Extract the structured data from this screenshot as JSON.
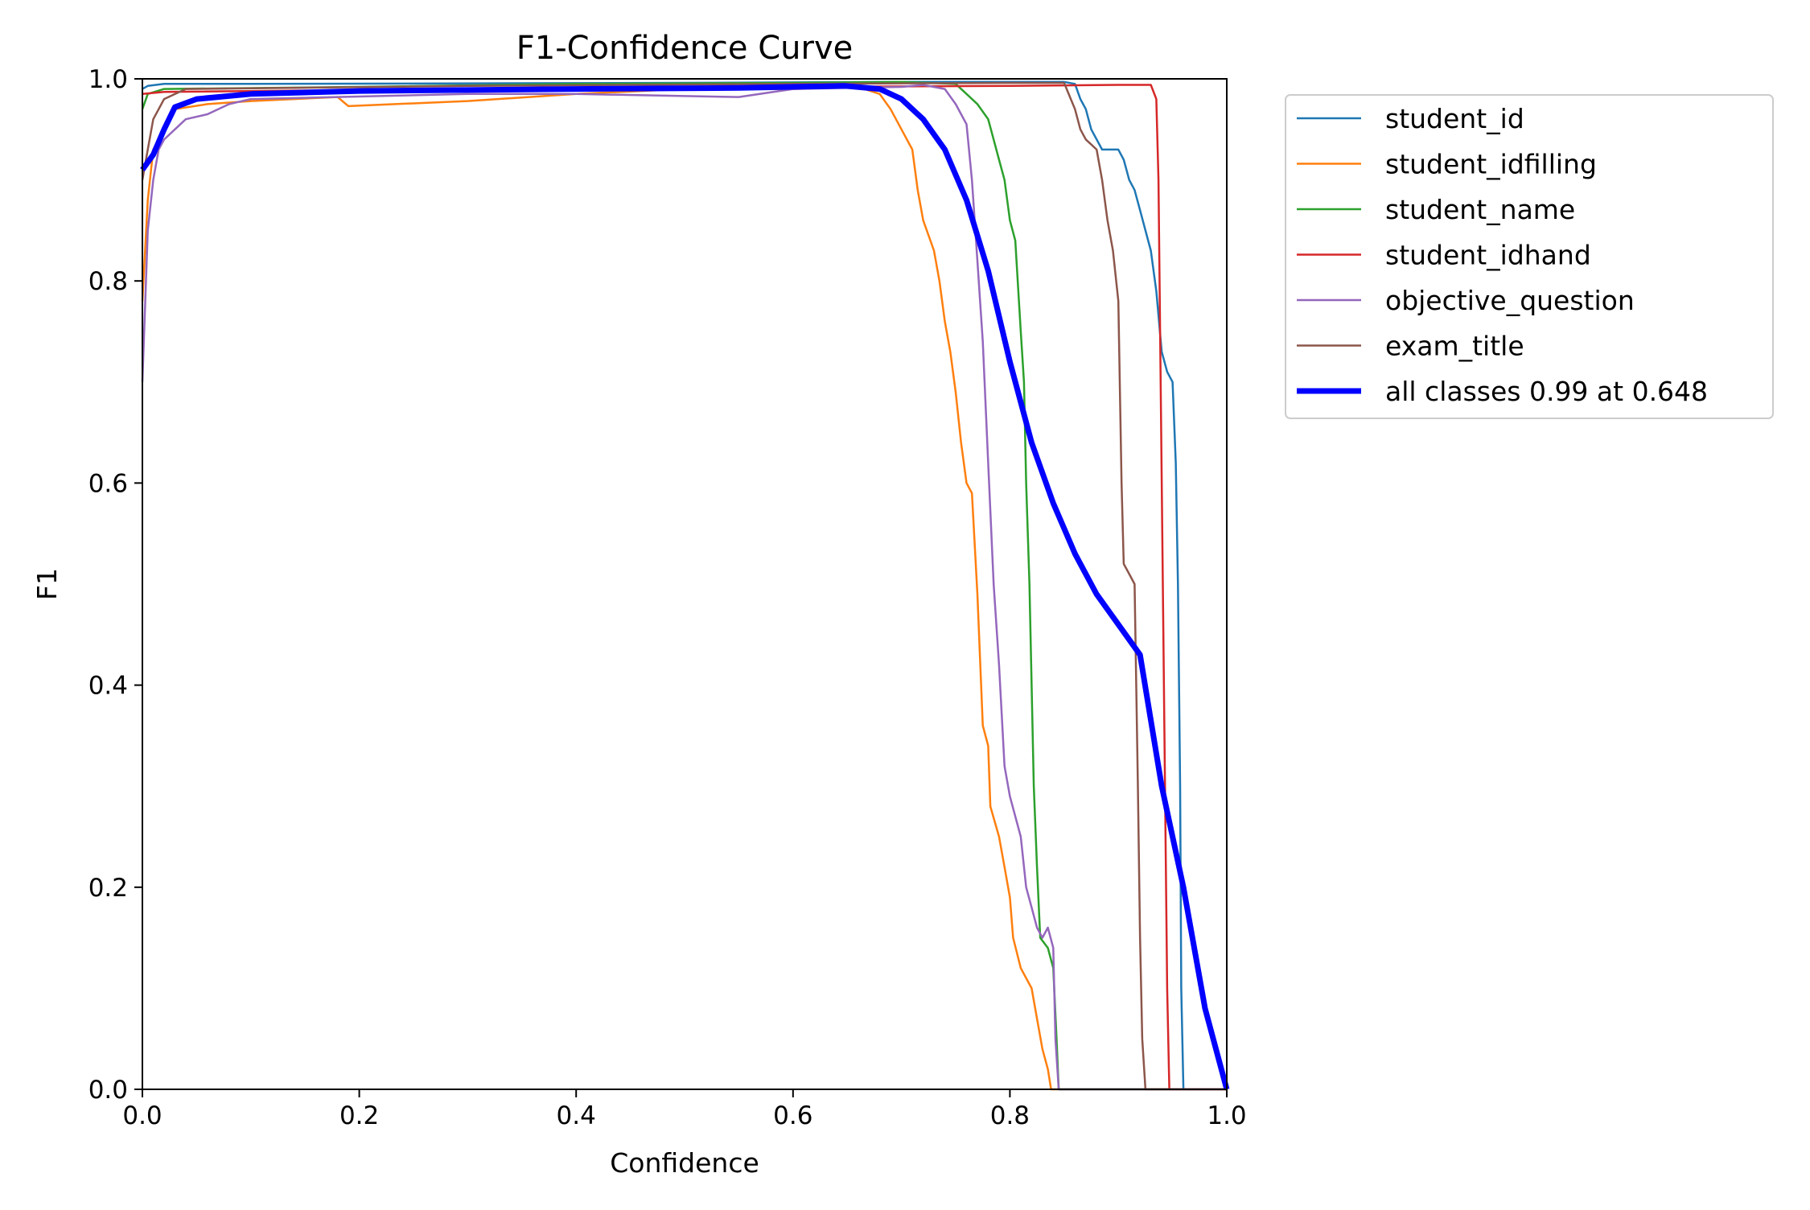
{
  "chart_data": {
    "type": "line",
    "title": "F1-Confidence Curve",
    "xlabel": "Confidence",
    "ylabel": "F1",
    "xlim": [
      0,
      1
    ],
    "ylim": [
      0,
      1
    ],
    "xticks": [
      "0.0",
      "0.2",
      "0.4",
      "0.6",
      "0.8",
      "1.0"
    ],
    "yticks": [
      "0.0",
      "0.2",
      "0.4",
      "0.6",
      "0.8",
      "1.0"
    ],
    "grid": false,
    "legend_position": "outside-upper-right",
    "series": [
      {
        "name": "student_id",
        "color": "#1f77b4",
        "width": "thin",
        "points": [
          [
            0,
            0.99
          ],
          [
            0.005,
            0.993
          ],
          [
            0.02,
            0.995
          ],
          [
            0.1,
            0.995
          ],
          [
            0.5,
            0.996
          ],
          [
            0.7,
            0.997
          ],
          [
            0.85,
            0.997
          ],
          [
            0.86,
            0.995
          ],
          [
            0.865,
            0.98
          ],
          [
            0.87,
            0.97
          ],
          [
            0.875,
            0.95
          ],
          [
            0.885,
            0.93
          ],
          [
            0.9,
            0.93
          ],
          [
            0.905,
            0.92
          ],
          [
            0.91,
            0.9
          ],
          [
            0.915,
            0.89
          ],
          [
            0.92,
            0.87
          ],
          [
            0.925,
            0.85
          ],
          [
            0.93,
            0.83
          ],
          [
            0.935,
            0.79
          ],
          [
            0.94,
            0.73
          ],
          [
            0.945,
            0.71
          ],
          [
            0.95,
            0.7
          ],
          [
            0.953,
            0.62
          ],
          [
            0.955,
            0.5
          ],
          [
            0.957,
            0.3
          ],
          [
            0.958,
            0.1
          ],
          [
            0.96,
            0.0
          ],
          [
            1.0,
            0.0
          ]
        ]
      },
      {
        "name": "student_idfilling",
        "color": "#ff7f0e",
        "width": "thin",
        "points": [
          [
            0,
            0.78
          ],
          [
            0.005,
            0.88
          ],
          [
            0.01,
            0.93
          ],
          [
            0.03,
            0.97
          ],
          [
            0.06,
            0.975
          ],
          [
            0.1,
            0.978
          ],
          [
            0.18,
            0.982
          ],
          [
            0.19,
            0.973
          ],
          [
            0.3,
            0.978
          ],
          [
            0.4,
            0.985
          ],
          [
            0.5,
            0.99
          ],
          [
            0.6,
            0.99
          ],
          [
            0.66,
            0.992
          ],
          [
            0.68,
            0.985
          ],
          [
            0.69,
            0.97
          ],
          [
            0.7,
            0.95
          ],
          [
            0.71,
            0.93
          ],
          [
            0.715,
            0.89
          ],
          [
            0.72,
            0.86
          ],
          [
            0.73,
            0.83
          ],
          [
            0.735,
            0.8
          ],
          [
            0.74,
            0.76
          ],
          [
            0.745,
            0.73
          ],
          [
            0.75,
            0.69
          ],
          [
            0.755,
            0.64
          ],
          [
            0.76,
            0.6
          ],
          [
            0.765,
            0.59
          ],
          [
            0.77,
            0.49
          ],
          [
            0.775,
            0.36
          ],
          [
            0.78,
            0.34
          ],
          [
            0.782,
            0.28
          ],
          [
            0.79,
            0.25
          ],
          [
            0.795,
            0.22
          ],
          [
            0.8,
            0.19
          ],
          [
            0.803,
            0.15
          ],
          [
            0.81,
            0.12
          ],
          [
            0.82,
            0.1
          ],
          [
            0.825,
            0.07
          ],
          [
            0.83,
            0.04
          ],
          [
            0.835,
            0.02
          ],
          [
            0.838,
            0.0
          ],
          [
            1.0,
            0.0
          ]
        ]
      },
      {
        "name": "student_name",
        "color": "#2ca02c",
        "width": "thin",
        "points": [
          [
            0,
            0.97
          ],
          [
            0.005,
            0.985
          ],
          [
            0.02,
            0.99
          ],
          [
            0.2,
            0.992
          ],
          [
            0.4,
            0.995
          ],
          [
            0.6,
            0.996
          ],
          [
            0.7,
            0.997
          ],
          [
            0.75,
            0.995
          ],
          [
            0.76,
            0.985
          ],
          [
            0.77,
            0.975
          ],
          [
            0.78,
            0.96
          ],
          [
            0.785,
            0.94
          ],
          [
            0.79,
            0.92
          ],
          [
            0.795,
            0.9
          ],
          [
            0.8,
            0.86
          ],
          [
            0.805,
            0.84
          ],
          [
            0.81,
            0.75
          ],
          [
            0.813,
            0.7
          ],
          [
            0.815,
            0.6
          ],
          [
            0.818,
            0.5
          ],
          [
            0.82,
            0.4
          ],
          [
            0.822,
            0.3
          ],
          [
            0.825,
            0.22
          ],
          [
            0.828,
            0.15
          ],
          [
            0.835,
            0.14
          ],
          [
            0.84,
            0.12
          ],
          [
            0.843,
            0.05
          ],
          [
            0.845,
            0.0
          ],
          [
            1.0,
            0.0
          ]
        ]
      },
      {
        "name": "student_idhand",
        "color": "#d62728",
        "width": "thin",
        "points": [
          [
            0,
            0.985
          ],
          [
            0.02,
            0.987
          ],
          [
            0.3,
            0.99
          ],
          [
            0.6,
            0.992
          ],
          [
            0.8,
            0.993
          ],
          [
            0.9,
            0.994
          ],
          [
            0.93,
            0.994
          ],
          [
            0.935,
            0.98
          ],
          [
            0.937,
            0.9
          ],
          [
            0.939,
            0.7
          ],
          [
            0.941,
            0.5
          ],
          [
            0.943,
            0.3
          ],
          [
            0.945,
            0.1
          ],
          [
            0.947,
            0.0
          ],
          [
            1.0,
            0.0
          ]
        ]
      },
      {
        "name": "objective_question",
        "color": "#9467bd",
        "width": "thin",
        "points": [
          [
            0,
            0.7
          ],
          [
            0.005,
            0.85
          ],
          [
            0.01,
            0.9
          ],
          [
            0.015,
            0.93
          ],
          [
            0.02,
            0.94
          ],
          [
            0.03,
            0.95
          ],
          [
            0.04,
            0.96
          ],
          [
            0.06,
            0.965
          ],
          [
            0.08,
            0.975
          ],
          [
            0.1,
            0.98
          ],
          [
            0.3,
            0.985
          ],
          [
            0.4,
            0.985
          ],
          [
            0.5,
            0.983
          ],
          [
            0.55,
            0.982
          ],
          [
            0.6,
            0.99
          ],
          [
            0.7,
            0.992
          ],
          [
            0.72,
            0.994
          ],
          [
            0.74,
            0.99
          ],
          [
            0.75,
            0.975
          ],
          [
            0.76,
            0.955
          ],
          [
            0.765,
            0.9
          ],
          [
            0.77,
            0.82
          ],
          [
            0.775,
            0.74
          ],
          [
            0.78,
            0.62
          ],
          [
            0.785,
            0.5
          ],
          [
            0.79,
            0.42
          ],
          [
            0.795,
            0.32
          ],
          [
            0.8,
            0.29
          ],
          [
            0.81,
            0.25
          ],
          [
            0.815,
            0.2
          ],
          [
            0.82,
            0.18
          ],
          [
            0.825,
            0.16
          ],
          [
            0.83,
            0.15
          ],
          [
            0.835,
            0.16
          ],
          [
            0.84,
            0.14
          ],
          [
            0.842,
            0.05
          ],
          [
            0.845,
            0.0
          ],
          [
            1.0,
            0.0
          ]
        ]
      },
      {
        "name": "exam_title",
        "color": "#8c564b",
        "width": "thin",
        "points": [
          [
            0,
            0.9
          ],
          [
            0.005,
            0.93
          ],
          [
            0.01,
            0.96
          ],
          [
            0.02,
            0.98
          ],
          [
            0.04,
            0.99
          ],
          [
            0.3,
            0.993
          ],
          [
            0.6,
            0.995
          ],
          [
            0.8,
            0.996
          ],
          [
            0.85,
            0.996
          ],
          [
            0.86,
            0.97
          ],
          [
            0.865,
            0.95
          ],
          [
            0.87,
            0.94
          ],
          [
            0.875,
            0.935
          ],
          [
            0.88,
            0.93
          ],
          [
            0.885,
            0.9
          ],
          [
            0.89,
            0.86
          ],
          [
            0.895,
            0.83
          ],
          [
            0.9,
            0.78
          ],
          [
            0.903,
            0.6
          ],
          [
            0.905,
            0.52
          ],
          [
            0.91,
            0.51
          ],
          [
            0.915,
            0.5
          ],
          [
            0.918,
            0.3
          ],
          [
            0.92,
            0.15
          ],
          [
            0.922,
            0.05
          ],
          [
            0.925,
            0.0
          ],
          [
            1.0,
            0.0
          ]
        ]
      },
      {
        "name": "all classes 0.99 at 0.648",
        "color": "#0000ff",
        "width": "thick",
        "points": [
          [
            0,
            0.91
          ],
          [
            0.01,
            0.925
          ],
          [
            0.02,
            0.95
          ],
          [
            0.03,
            0.972
          ],
          [
            0.05,
            0.98
          ],
          [
            0.1,
            0.985
          ],
          [
            0.2,
            0.988
          ],
          [
            0.4,
            0.99
          ],
          [
            0.55,
            0.991
          ],
          [
            0.648,
            0.993
          ],
          [
            0.68,
            0.99
          ],
          [
            0.7,
            0.98
          ],
          [
            0.72,
            0.96
          ],
          [
            0.74,
            0.93
          ],
          [
            0.76,
            0.88
          ],
          [
            0.78,
            0.81
          ],
          [
            0.8,
            0.72
          ],
          [
            0.82,
            0.64
          ],
          [
            0.84,
            0.58
          ],
          [
            0.86,
            0.53
          ],
          [
            0.88,
            0.49
          ],
          [
            0.9,
            0.46
          ],
          [
            0.92,
            0.43
          ],
          [
            0.94,
            0.3
          ],
          [
            0.96,
            0.2
          ],
          [
            0.98,
            0.08
          ],
          [
            1.0,
            0.0
          ]
        ]
      }
    ]
  }
}
